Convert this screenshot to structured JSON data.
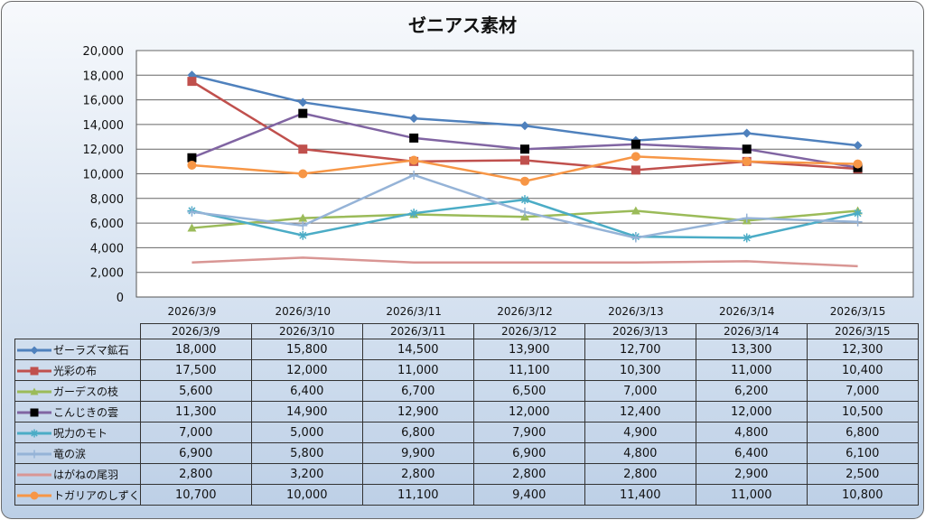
{
  "chart_data": {
    "type": "line",
    "title": "ゼニアス素材",
    "categories": [
      "2026/3/9",
      "2026/3/10",
      "2026/3/11",
      "2026/3/12",
      "2026/3/13",
      "2026/3/14",
      "2026/3/15"
    ],
    "ylim": [
      0,
      20000
    ],
    "yticks": [
      "0",
      "2,000",
      "4,000",
      "6,000",
      "8,000",
      "10,000",
      "12,000",
      "14,000",
      "16,000",
      "18,000",
      "20,000"
    ],
    "grid": true,
    "legend": "data-table",
    "series": [
      {
        "name": "ゼーラズマ鉱石",
        "color": "#4f81bd",
        "marker": "diamond",
        "values": [
          18000,
          15800,
          14500,
          13900,
          12700,
          13300,
          12300
        ],
        "labels": [
          "18,000",
          "15,800",
          "14,500",
          "13,900",
          "12,700",
          "13,300",
          "12,300"
        ]
      },
      {
        "name": "光彩の布",
        "color": "#c0504d",
        "marker": "square",
        "values": [
          17500,
          12000,
          11000,
          11100,
          10300,
          11000,
          10400
        ],
        "labels": [
          "17,500",
          "12,000",
          "11,000",
          "11,100",
          "10,300",
          "11,000",
          "10,400"
        ]
      },
      {
        "name": "ガーデスの枝",
        "color": "#9bbb59",
        "marker": "triangle",
        "values": [
          5600,
          6400,
          6700,
          6500,
          7000,
          6200,
          7000
        ],
        "labels": [
          "5,600",
          "6,400",
          "6,700",
          "6,500",
          "7,000",
          "6,200",
          "7,000"
        ]
      },
      {
        "name": "こんじきの雲",
        "color": "#8064a2",
        "marker": "blacksquare",
        "values": [
          11300,
          14900,
          12900,
          12000,
          12400,
          12000,
          10500
        ],
        "labels": [
          "11,300",
          "14,900",
          "12,900",
          "12,000",
          "12,400",
          "12,000",
          "10,500"
        ]
      },
      {
        "name": "呪力のモト",
        "color": "#4bacc6",
        "marker": "star",
        "values": [
          7000,
          5000,
          6800,
          7900,
          4900,
          4800,
          6800
        ],
        "labels": [
          "7,000",
          "5,000",
          "6,800",
          "7,900",
          "4,900",
          "4,800",
          "6,800"
        ]
      },
      {
        "name": "竜の涙",
        "color": "#95b3d7",
        "marker": "plus",
        "values": [
          6900,
          5800,
          9900,
          6900,
          4800,
          6400,
          6100
        ],
        "labels": [
          "6,900",
          "5,800",
          "9,900",
          "6,900",
          "4,800",
          "6,400",
          "6,100"
        ]
      },
      {
        "name": "はがねの尾羽",
        "color": "#d99694",
        "marker": "none",
        "values": [
          2800,
          3200,
          2800,
          2800,
          2800,
          2900,
          2500
        ],
        "labels": [
          "2,800",
          "3,200",
          "2,800",
          "2,800",
          "2,800",
          "2,900",
          "2,500"
        ]
      },
      {
        "name": "トガリアのしずく",
        "color": "#f79646",
        "marker": "circle",
        "values": [
          10700,
          10000,
          11100,
          9400,
          11400,
          11000,
          10800
        ],
        "labels": [
          "10,700",
          "10,000",
          "11,100",
          "9,400",
          "11,400",
          "11,000",
          "10,800"
        ]
      }
    ]
  }
}
